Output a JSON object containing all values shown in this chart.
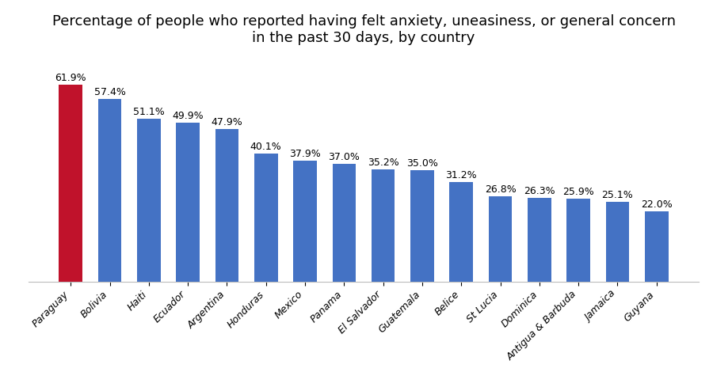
{
  "title": "Percentage of people who reported having felt anxiety, uneasiness, or general concern\nin the past 30 days, by country",
  "categories": [
    "Paraguay",
    "Bolivia",
    "Haiti",
    "Ecuador",
    "Argentina",
    "Honduras",
    "Mexico",
    "Panama",
    "El Salvador",
    "Guatemala",
    "Belice",
    "St Lucia",
    "Dominica",
    "Antigua & Barbuda",
    "Jamaica",
    "Guyana"
  ],
  "values": [
    61.9,
    57.4,
    51.1,
    49.9,
    47.9,
    40.1,
    37.9,
    37.0,
    35.2,
    35.0,
    31.2,
    26.8,
    26.3,
    25.9,
    25.1,
    22.0
  ],
  "bar_colors": [
    "#c0122b",
    "#4472c4",
    "#4472c4",
    "#4472c4",
    "#4472c4",
    "#4472c4",
    "#4472c4",
    "#4472c4",
    "#4472c4",
    "#4472c4",
    "#4472c4",
    "#4472c4",
    "#4472c4",
    "#4472c4",
    "#4472c4",
    "#4472c4"
  ],
  "title_fontsize": 13,
  "label_fontsize": 9,
  "tick_fontsize": 9,
  "background_color": "#ffffff",
  "ylim": [
    0,
    70
  ],
  "figsize": [
    9.0,
    4.94
  ],
  "dpi": 100
}
